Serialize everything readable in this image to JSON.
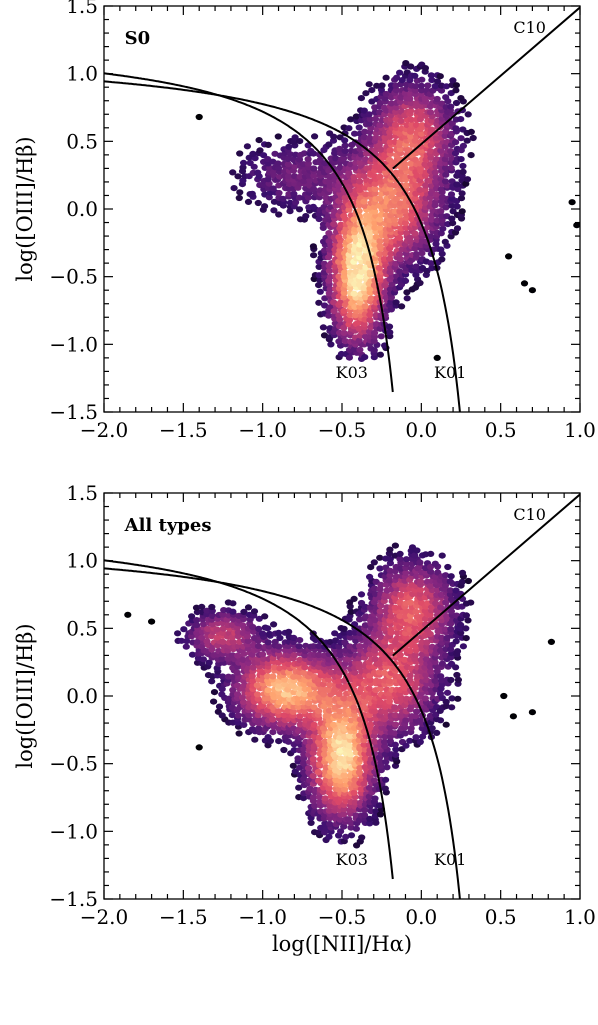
{
  "chart_data": [
    {
      "type": "heatmap",
      "title": "S0",
      "xlabel": "",
      "ylabel": "log([OIII]/Hβ)",
      "xlim": [
        -2.0,
        1.0
      ],
      "ylim": [
        -1.5,
        1.5
      ],
      "x_ticks": [
        -2.0,
        -1.5,
        -1.0,
        -0.5,
        0.0,
        0.5,
        1.0
      ],
      "x_tick_labels": [
        "−2.0",
        "−1.5",
        "−1.0",
        "−0.5",
        "0.0",
        "0.5",
        "1.0"
      ],
      "y_ticks": [
        -1.5,
        -1.0,
        -0.5,
        0.0,
        0.5,
        1.0,
        1.5
      ],
      "y_tick_labels": [
        "−1.5",
        "−1.0",
        "−0.5",
        "0.0",
        "0.5",
        "1.0",
        "1.5"
      ],
      "curves": [
        {
          "label": "K03",
          "equation": "y = 0.61/(x - 0.05) + 1.3",
          "x_max": 0.05
        },
        {
          "label": "K01",
          "equation": "y = 0.61/(x - 0.47) + 1.19",
          "x_max": 0.47
        },
        {
          "label": "C10",
          "equation": "y = 1.01x + 0.48",
          "x_min": -0.18
        }
      ],
      "density_clusters": [
        {
          "x": -0.4,
          "y": -0.5,
          "sx": 0.11,
          "sy": 0.3,
          "weight": 0.55
        },
        {
          "x": -0.2,
          "y": 0.0,
          "sx": 0.2,
          "sy": 0.28,
          "weight": 0.35
        },
        {
          "x": -0.05,
          "y": 0.55,
          "sx": 0.17,
          "sy": 0.25,
          "weight": 0.3
        },
        {
          "x": -0.8,
          "y": 0.25,
          "sx": 0.25,
          "sy": 0.18,
          "weight": 0.12
        }
      ],
      "outliers": [
        [
          0.95,
          0.05
        ],
        [
          0.98,
          -0.12
        ],
        [
          0.55,
          -0.35
        ],
        [
          0.65,
          -0.55
        ],
        [
          0.7,
          -0.6
        ],
        [
          -1.4,
          0.68
        ],
        [
          0.1,
          -1.1
        ]
      ]
    },
    {
      "type": "heatmap",
      "title": "All types",
      "xlabel": "log([NII]/Hα)",
      "ylabel": "log([OIII]/Hβ)",
      "xlim": [
        -2.0,
        1.0
      ],
      "ylim": [
        -1.5,
        1.5
      ],
      "x_ticks": [
        -2.0,
        -1.5,
        -1.0,
        -0.5,
        0.0,
        0.5,
        1.0
      ],
      "x_tick_labels": [
        "−2.0",
        "−1.5",
        "−1.0",
        "−0.5",
        "0.0",
        "0.5",
        "1.0"
      ],
      "y_ticks": [
        -1.5,
        -1.0,
        -0.5,
        0.0,
        0.5,
        1.0,
        1.5
      ],
      "y_tick_labels": [
        "−1.5",
        "−1.0",
        "−0.5",
        "0.0",
        "0.5",
        "1.0",
        "1.5"
      ],
      "curves": [
        {
          "label": "K03",
          "equation": "y = 0.61/(x - 0.05) + 1.3",
          "x_max": 0.05
        },
        {
          "label": "K01",
          "equation": "y = 0.61/(x - 0.47) + 1.19",
          "x_max": 0.47
        },
        {
          "label": "C10",
          "equation": "y = 1.01x + 0.48",
          "x_min": -0.18
        }
      ],
      "density_clusters": [
        {
          "x": -0.5,
          "y": -0.45,
          "sx": 0.13,
          "sy": 0.28,
          "weight": 0.45
        },
        {
          "x": -0.85,
          "y": 0.05,
          "sx": 0.2,
          "sy": 0.18,
          "weight": 0.4
        },
        {
          "x": -1.25,
          "y": 0.45,
          "sx": 0.15,
          "sy": 0.12,
          "weight": 0.2
        },
        {
          "x": -0.2,
          "y": 0.1,
          "sx": 0.2,
          "sy": 0.25,
          "weight": 0.25
        },
        {
          "x": -0.05,
          "y": 0.65,
          "sx": 0.17,
          "sy": 0.22,
          "weight": 0.25
        }
      ],
      "outliers": [
        [
          0.82,
          0.4
        ],
        [
          -1.4,
          -0.38
        ],
        [
          0.52,
          0.0
        ],
        [
          0.58,
          -0.15
        ],
        [
          0.7,
          -0.12
        ],
        [
          -1.85,
          0.6
        ],
        [
          -1.7,
          0.55
        ]
      ]
    }
  ],
  "colormap": [
    "#000004",
    "#3b0f70",
    "#8c2981",
    "#de4968",
    "#fe9f6d",
    "#fcfdbf"
  ]
}
